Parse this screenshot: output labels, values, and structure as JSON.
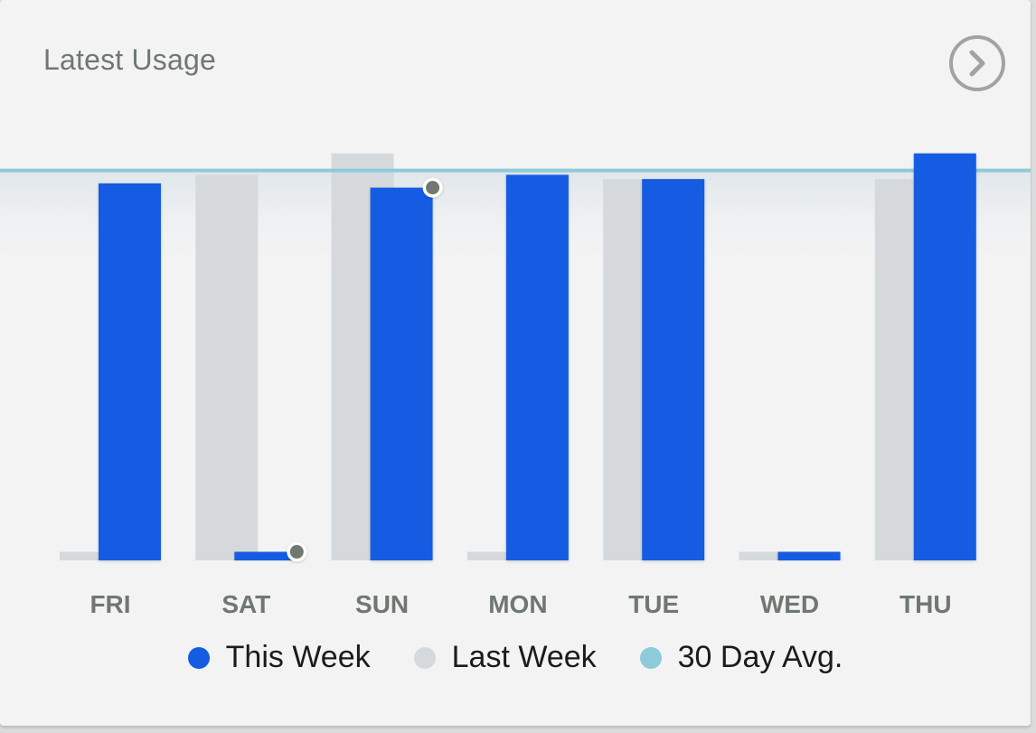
{
  "card": {
    "title": "Latest Usage"
  },
  "icons": {
    "more": "chevron-right-circle-icon"
  },
  "colors": {
    "this_week": "#135ce3",
    "last_week": "#d6d9dc",
    "avg": "#8ecad9",
    "axis_label": "#6f7772",
    "marker": "#707870"
  },
  "chart_data": {
    "type": "bar",
    "categories": [
      "FRI",
      "SAT",
      "SUN",
      "MON",
      "TUE",
      "WED",
      "THU"
    ],
    "series": [
      {
        "name": "This Week",
        "values": [
          88,
          2,
          87,
          90,
          89,
          2,
          95
        ]
      },
      {
        "name": "Last Week",
        "values": [
          2,
          90,
          95,
          2,
          89,
          2,
          89
        ]
      }
    ],
    "reference_line": {
      "name": "30 Day Avg.",
      "value": 91
    },
    "markers": [
      {
        "series": "This Week",
        "category": "SAT"
      },
      {
        "series": "This Week",
        "category": "SUN"
      }
    ],
    "ylim": [
      0,
      100
    ],
    "grid": false,
    "legend_position": "bottom"
  },
  "legend": [
    {
      "label": "This Week",
      "color_key": "this_week"
    },
    {
      "label": "Last Week",
      "color_key": "last_week"
    },
    {
      "label": "30 Day Avg.",
      "color_key": "avg"
    }
  ]
}
